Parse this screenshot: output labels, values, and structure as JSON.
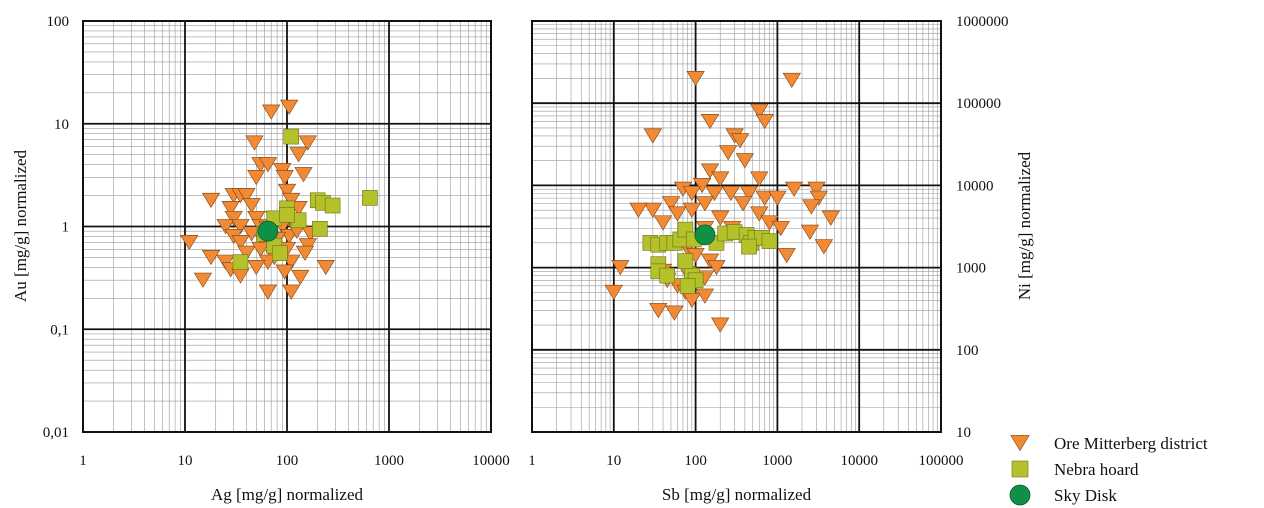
{
  "chart_data": [
    {
      "type": "scatter",
      "title": "",
      "xlabel": "Ag [mg/g] normalized",
      "ylabel": "Au [mg/g] normalized",
      "xscale": "log",
      "yscale": "log",
      "xlim": [
        1,
        10000
      ],
      "ylim": [
        0.01,
        100
      ],
      "xtick_labels": [
        "1",
        "10",
        "100",
        "1000",
        "10000"
      ],
      "ytick_labels": [
        "0,01",
        "0,1",
        "1",
        "10",
        "100"
      ],
      "ylabel_side": "left",
      "grid": true,
      "series": [
        {
          "name": "Ore Mitterberg district",
          "marker": "triangle-down",
          "color": "#f28a35",
          "points": [
            [
              70,
              13
            ],
            [
              105,
              14.5
            ],
            [
              48,
              6.5
            ],
            [
              160,
              6.5
            ],
            [
              130,
              5
            ],
            [
              55,
              4
            ],
            [
              65,
              4
            ],
            [
              90,
              3.5
            ],
            [
              50,
              3
            ],
            [
              95,
              3
            ],
            [
              145,
              3.2
            ],
            [
              30,
              2
            ],
            [
              35,
              2
            ],
            [
              40,
              2
            ],
            [
              18,
              1.8
            ],
            [
              100,
              2.2
            ],
            [
              110,
              1.8
            ],
            [
              28,
              1.5
            ],
            [
              45,
              1.6
            ],
            [
              130,
              1.5
            ],
            [
              30,
              1.2
            ],
            [
              50,
              1.2
            ],
            [
              75,
              1.2
            ],
            [
              25,
              1
            ],
            [
              35,
              1
            ],
            [
              55,
              1
            ],
            [
              65,
              0.95
            ],
            [
              90,
              1
            ],
            [
              115,
              1.1
            ],
            [
              30,
              0.8
            ],
            [
              45,
              0.85
            ],
            [
              105,
              0.8
            ],
            [
              125,
              0.9
            ],
            [
              170,
              0.85
            ],
            [
              11,
              0.7
            ],
            [
              35,
              0.7
            ],
            [
              60,
              0.7
            ],
            [
              80,
              0.75
            ],
            [
              160,
              0.65
            ],
            [
              40,
              0.55
            ],
            [
              55,
              0.6
            ],
            [
              75,
              0.5
            ],
            [
              100,
              0.6
            ],
            [
              18,
              0.5
            ],
            [
              25,
              0.45
            ],
            [
              65,
              0.45
            ],
            [
              110,
              0.45
            ],
            [
              28,
              0.38
            ],
            [
              35,
              0.33
            ],
            [
              50,
              0.4
            ],
            [
              95,
              0.36
            ],
            [
              135,
              0.32
            ],
            [
              240,
              0.4
            ],
            [
              15,
              0.3
            ],
            [
              65,
              0.23
            ],
            [
              110,
              0.23
            ],
            [
              150,
              0.55
            ]
          ]
        },
        {
          "name": "Nebra hoard",
          "marker": "square",
          "color": "#b5c12b",
          "points": [
            [
              110,
              7.5
            ],
            [
              100,
              1.5
            ],
            [
              200,
              1.8
            ],
            [
              225,
              1.7
            ],
            [
              280,
              1.6
            ],
            [
              650,
              1.9
            ],
            [
              75,
              1.2
            ],
            [
              130,
              1.15
            ],
            [
              100,
              1.3
            ],
            [
              210,
              0.95
            ],
            [
              60,
              0.85
            ],
            [
              75,
              0.65
            ],
            [
              85,
              0.55
            ],
            [
              35,
              0.45
            ]
          ]
        },
        {
          "name": "Sky Disk",
          "marker": "circle",
          "color": "#109046",
          "points": [
            [
              65,
              0.9
            ]
          ]
        }
      ]
    },
    {
      "type": "scatter",
      "title": "",
      "xlabel": "Sb [mg/g] normalized",
      "ylabel": "Ni [mg/g] normalized",
      "xscale": "log",
      "yscale": "log",
      "xlim": [
        1,
        100000
      ],
      "ylim": [
        10,
        1000000
      ],
      "xtick_labels": [
        "1",
        "10",
        "100",
        "1000",
        "10000",
        "100000"
      ],
      "ytick_labels": [
        "10",
        "100",
        "1000",
        "10000",
        "100000",
        "1000000"
      ],
      "ylabel_side": "right",
      "grid": true,
      "series": [
        {
          "name": "Ore Mitterberg district",
          "marker": "triangle-down",
          "color": "#f28a35",
          "points": [
            [
              100,
              200000
            ],
            [
              1500,
              190000
            ],
            [
              600,
              80000
            ],
            [
              700,
              60000
            ],
            [
              150,
              60000
            ],
            [
              30,
              40000
            ],
            [
              300,
              40000
            ],
            [
              350,
              35000
            ],
            [
              250,
              25000
            ],
            [
              400,
              20000
            ],
            [
              150,
              15000
            ],
            [
              200,
              12000
            ],
            [
              600,
              12000
            ],
            [
              120,
              10000
            ],
            [
              1600,
              9000
            ],
            [
              3000,
              9000
            ],
            [
              70,
              9000
            ],
            [
              90,
              8000
            ],
            [
              170,
              8000
            ],
            [
              270,
              8000
            ],
            [
              450,
              8000
            ],
            [
              700,
              7000
            ],
            [
              1000,
              7000
            ],
            [
              3200,
              7000
            ],
            [
              50,
              6000
            ],
            [
              30,
              5000
            ],
            [
              130,
              6000
            ],
            [
              380,
              6000
            ],
            [
              2600,
              5500
            ],
            [
              20,
              5000
            ],
            [
              60,
              4500
            ],
            [
              90,
              5000
            ],
            [
              200,
              4000
            ],
            [
              600,
              4500
            ],
            [
              4500,
              4000
            ],
            [
              800,
              3500
            ],
            [
              1100,
              3000
            ],
            [
              40,
              3500
            ],
            [
              130,
              3000
            ],
            [
              280,
              3000
            ],
            [
              2500,
              2700
            ],
            [
              3700,
              1800
            ],
            [
              1300,
              1400
            ],
            [
              55,
              2000
            ],
            [
              80,
              1700
            ],
            [
              100,
              1400
            ],
            [
              150,
              1200
            ],
            [
              12,
              1000
            ],
            [
              40,
              900
            ],
            [
              80,
              850
            ],
            [
              130,
              750
            ],
            [
              180,
              1000
            ],
            [
              45,
              700
            ],
            [
              60,
              600
            ],
            [
              75,
              500
            ],
            [
              90,
              400
            ],
            [
              130,
              450
            ],
            [
              10,
              500
            ],
            [
              35,
              300
            ],
            [
              55,
              280
            ],
            [
              200,
              200
            ]
          ]
        },
        {
          "name": "Nebra hoard",
          "marker": "square",
          "color": "#b5c12b",
          "points": [
            [
              28,
              2000
            ],
            [
              35,
              1900
            ],
            [
              45,
              2000
            ],
            [
              55,
              2000
            ],
            [
              65,
              2200
            ],
            [
              75,
              2900
            ],
            [
              95,
              2200
            ],
            [
              180,
              2000
            ],
            [
              230,
              2600
            ],
            [
              300,
              2700
            ],
            [
              420,
              2500
            ],
            [
              480,
              2000
            ],
            [
              540,
              2300
            ],
            [
              650,
              2300
            ],
            [
              800,
              2100
            ],
            [
              450,
              1800
            ],
            [
              35,
              1100
            ],
            [
              35,
              900
            ],
            [
              45,
              800
            ],
            [
              90,
              800
            ],
            [
              100,
              700
            ],
            [
              80,
              600
            ],
            [
              75,
              1200
            ]
          ]
        },
        {
          "name": "Sky Disk",
          "marker": "circle",
          "color": "#109046",
          "points": [
            [
              130,
              2500
            ]
          ]
        }
      ]
    }
  ],
  "legend": {
    "placement": "bottom-right",
    "entries": [
      {
        "label": "Ore Mitterberg district",
        "marker": "triangle-down",
        "color": "#f28a35"
      },
      {
        "label": "Nebra hoard",
        "marker": "square",
        "color": "#b5c12b"
      },
      {
        "label": "Sky Disk",
        "marker": "circle",
        "color": "#109046"
      }
    ]
  }
}
